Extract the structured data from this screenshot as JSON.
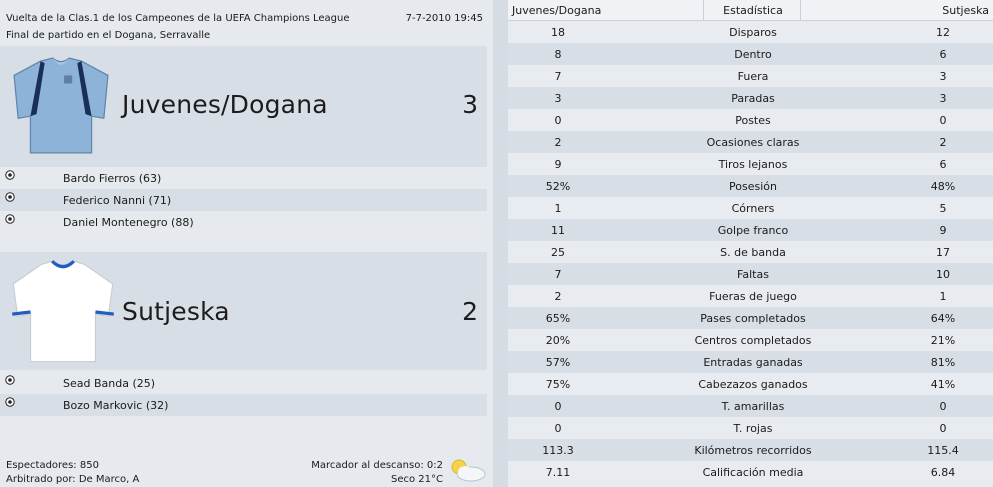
{
  "header": {
    "competition": "Vuelta de la Clas.1 de los Campeones de la UEFA Champions League",
    "datetime": "7-7-2010 19:45",
    "venue": "Final de partido en el Dogana, Serravalle"
  },
  "home": {
    "name": "Juvenes/Dogana",
    "score": "3",
    "kit_colors": {
      "shirt": "#8db4d8",
      "trim": "#1b2e5a"
    },
    "scorers": [
      "Bardo Fierros (63)",
      "Federico Nanni (71)",
      "Daniel Montenegro (88)"
    ]
  },
  "away": {
    "name": "Sutjeska",
    "score": "2",
    "kit_colors": {
      "shirt": "#ffffff",
      "trim": "#1f5fbf"
    },
    "scorers": [
      "Sead Banda (25)",
      "Bozo Markovic (32)"
    ]
  },
  "footer": {
    "spectators": "Espectadores: 850",
    "referee": "Arbitrado por: De Marco, A",
    "halftime": "Marcador al descanso: 0:2",
    "weather": "Seco 21°C",
    "weather_icon": "sun-cloud-icon"
  },
  "stats": {
    "header_home": "Juvenes/Dogana",
    "header_stat": "Estadística",
    "header_away": "Sutjeska",
    "rows": [
      {
        "label": "Disparos",
        "home": "18",
        "away": "12"
      },
      {
        "label": "Dentro",
        "home": "8",
        "away": "6"
      },
      {
        "label": "Fuera",
        "home": "7",
        "away": "3"
      },
      {
        "label": "Paradas",
        "home": "3",
        "away": "3"
      },
      {
        "label": "Postes",
        "home": "0",
        "away": "0"
      },
      {
        "label": "Ocasiones claras",
        "home": "2",
        "away": "2"
      },
      {
        "label": "Tiros lejanos",
        "home": "9",
        "away": "6"
      },
      {
        "label": "Posesión",
        "home": "52%",
        "away": "48%"
      },
      {
        "label": "Córners",
        "home": "1",
        "away": "5"
      },
      {
        "label": "Golpe franco",
        "home": "11",
        "away": "9"
      },
      {
        "label": "S. de banda",
        "home": "25",
        "away": "17"
      },
      {
        "label": "Faltas",
        "home": "7",
        "away": "10"
      },
      {
        "label": "Fueras de juego",
        "home": "2",
        "away": "1"
      },
      {
        "label": "Pases completados",
        "home": "65%",
        "away": "64%"
      },
      {
        "label": "Centros completados",
        "home": "20%",
        "away": "21%"
      },
      {
        "label": "Entradas ganadas",
        "home": "57%",
        "away": "81%"
      },
      {
        "label": "Cabezazos ganados",
        "home": "75%",
        "away": "41%"
      },
      {
        "label": "T. amarillas",
        "home": "0",
        "away": "0"
      },
      {
        "label": "T. rojas",
        "home": "0",
        "away": "0"
      },
      {
        "label": "Kilómetros recorridos",
        "home": "113.3",
        "away": "115.4"
      },
      {
        "label": "Calificación media",
        "home": "7.11",
        "away": "6.84"
      }
    ]
  }
}
